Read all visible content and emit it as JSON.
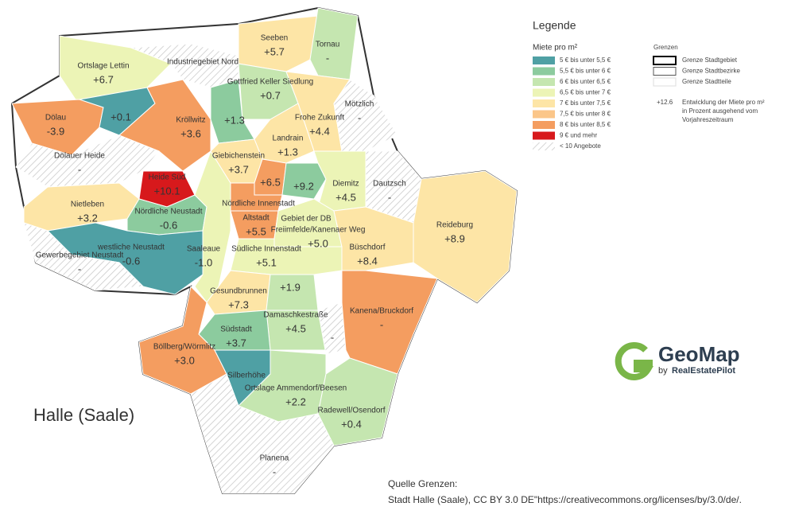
{
  "map": {
    "city": "Halle (Saale)",
    "districts": [
      {
        "name": "Ortslage Lettin",
        "change": "+6.7"
      },
      {
        "name": "Dölau",
        "change": "-3.9"
      },
      {
        "change": "+0.1"
      },
      {
        "name": "Kröllwitz",
        "change": "+3.6"
      },
      {
        "name": "Dölauer Heide",
        "change": "-"
      },
      {
        "name": "Heide Süd",
        "change": "+10.1"
      },
      {
        "name": "Nietleben",
        "change": "+3.2"
      },
      {
        "name": "Nördliche Neustadt",
        "change": "-0.6"
      },
      {
        "name": "westliche Neustadt",
        "change": "-0.6"
      },
      {
        "name": "Gewerbegebiet Neustadt",
        "change": "-"
      },
      {
        "name": "Saaleaue",
        "change": "-1.0"
      },
      {
        "name": "Industriegebiet Nord"
      },
      {
        "name": "Seeben",
        "change": "+5.7"
      },
      {
        "name": "Tornau",
        "change": "-"
      },
      {
        "name": "Gottfried Keller Siedlung",
        "change": "+0.7"
      },
      {
        "change": "+1.3"
      },
      {
        "name": "Frohe Zukunft",
        "change": "+4.4"
      },
      {
        "name": "Mötzlich",
        "change": "-"
      },
      {
        "name": "Landrain",
        "change": "+1.3"
      },
      {
        "name": "Giebichenstein",
        "change": "+3.7"
      },
      {
        "change": "+6.5"
      },
      {
        "change": "+9.2"
      },
      {
        "name": "Diemitz",
        "change": "+4.5"
      },
      {
        "name": "Dautzsch",
        "change": "-"
      },
      {
        "name": "Reideburg",
        "change": "+8.9"
      },
      {
        "name": "Nördliche Innenstadt"
      },
      {
        "name": "Altstadt",
        "change": "+5.5"
      },
      {
        "name": "Freiimfelde/Kanenaer Weg",
        "change": "+5.0"
      },
      {
        "name": "Büschdorf",
        "change": "+8.4"
      },
      {
        "name": "Südliche Innenstadt",
        "change": "+5.1"
      },
      {
        "name": "Gesundbrunnen",
        "change": "+7.3"
      },
      {
        "change": "+1.9"
      },
      {
        "name": "Damaschkestraße",
        "change": "+4.5"
      },
      {
        "change": "-"
      },
      {
        "name": "Kanena/Bruckdorf",
        "change": "-"
      },
      {
        "name": "Südstadt",
        "change": "+3.7"
      },
      {
        "name": "Böllberg/Wörmlitz",
        "change": "+3.0"
      },
      {
        "name": "Silberhöhe"
      },
      {
        "name": "Ortslage Ammendorf/Beesen",
        "change": "+2.2"
      },
      {
        "name": "Radewell/Osendorf",
        "change": "+0.4"
      },
      {
        "name": "Planena",
        "change": "-"
      },
      {
        "name": "Gebiet der DB"
      }
    ]
  },
  "legend": {
    "title": "Legende",
    "rent_title": "Miete pro m²",
    "rent_classes": [
      {
        "label": "5 € bis unter 5,5 €",
        "color": "#4fa0a4"
      },
      {
        "label": "5,5 € bis unter 6 €",
        "color": "#8ccb9e"
      },
      {
        "label": "6 € bis unter 6,5 €",
        "color": "#c5e6b0"
      },
      {
        "label": "6,5 € bis unter 7 €",
        "color": "#ecf4b6"
      },
      {
        "label": "7 € bis unter 7,5 €",
        "color": "#fde5a6"
      },
      {
        "label": "7,5 € bis unter 8 €",
        "color": "#fbc689"
      },
      {
        "label": "8 € bis unter 8,5 €",
        "color": "#f49d60"
      },
      {
        "label": "9 € und mehr",
        "color": "#d7191c"
      },
      {
        "label": "< 10 Angebote"
      }
    ],
    "borders_title": "Grenzen",
    "borders": [
      "Grenze Stadtgebiet",
      "Grenze Stadtbezirke",
      "Grenze Stadtteile"
    ],
    "example_value": "+12.6",
    "example_text": [
      "Entwicklung der Miete pro m²",
      "in Prozent ausgehend vom",
      "Vorjahreszeitraum"
    ]
  },
  "logo": {
    "name": "GeoMap",
    "by": "by",
    "company": "RealEstatePilot"
  },
  "source": {
    "title": "Quelle Grenzen:",
    "text": "Stadt Halle (Saale), CC BY 3.0 DE\"https://creativecommons.org/licenses/by/3.0/de/."
  }
}
